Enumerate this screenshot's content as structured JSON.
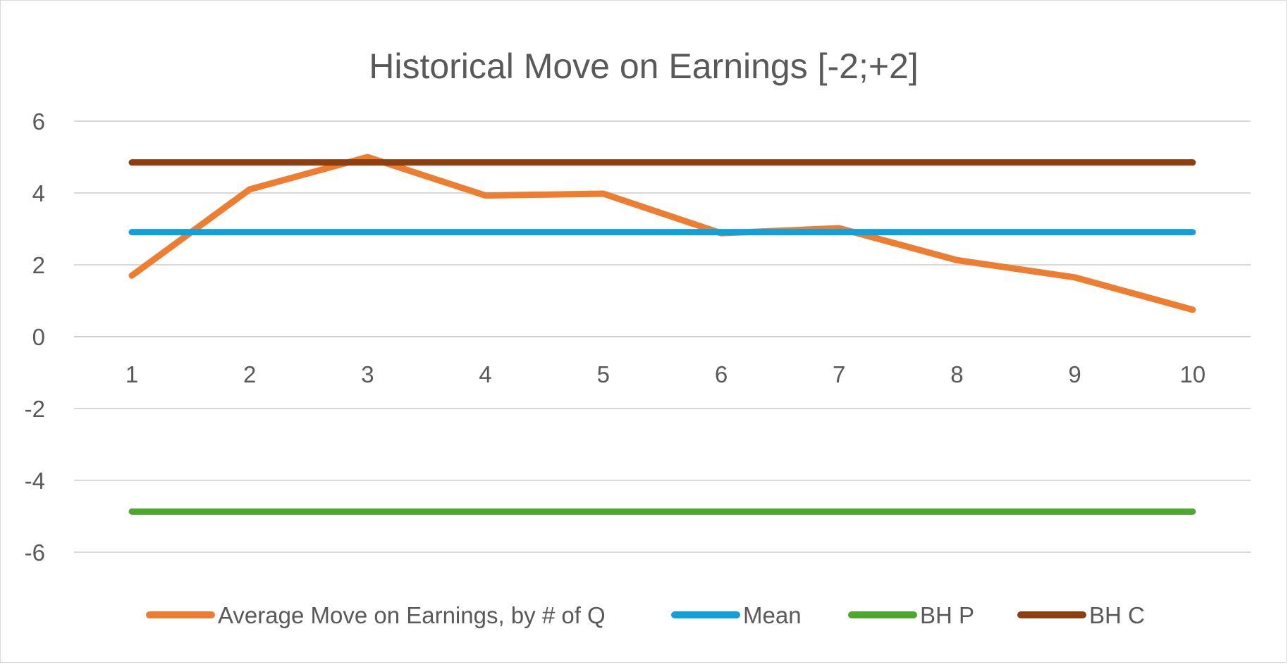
{
  "chart_data": {
    "type": "line",
    "title": "Historical Move on Earnings [-2;+2]",
    "xlabel": "",
    "ylabel": "",
    "categories": [
      "1",
      "2",
      "3",
      "4",
      "5",
      "6",
      "7",
      "8",
      "9",
      "10"
    ],
    "ylim": [
      -7,
      6
    ],
    "yticks": [
      6,
      4,
      2,
      0,
      -2,
      -4,
      -6
    ],
    "grid": true,
    "legend_position": "bottom",
    "series": [
      {
        "name": "Average Move on Earnings, by # of Q",
        "color": "#ED7D31",
        "values": [
          1.7,
          4.1,
          5.0,
          3.93,
          3.98,
          2.88,
          3.02,
          2.13,
          1.65,
          0.75
        ]
      },
      {
        "name": "Mean",
        "color": "#159FD9",
        "values": [
          2.91,
          2.91,
          2.91,
          2.91,
          2.91,
          2.91,
          2.91,
          2.91,
          2.91,
          2.91
        ]
      },
      {
        "name": "BH P",
        "color": "#4EA72E",
        "values": [
          -4.87,
          -4.87,
          -4.87,
          -4.87,
          -4.87,
          -4.87,
          -4.87,
          -4.87,
          -4.87,
          -4.87
        ]
      },
      {
        "name": "BH C",
        "color": "#8E3F11",
        "values": [
          4.85,
          4.85,
          4.85,
          4.85,
          4.85,
          4.85,
          4.85,
          4.85,
          4.85,
          4.85
        ]
      }
    ]
  }
}
